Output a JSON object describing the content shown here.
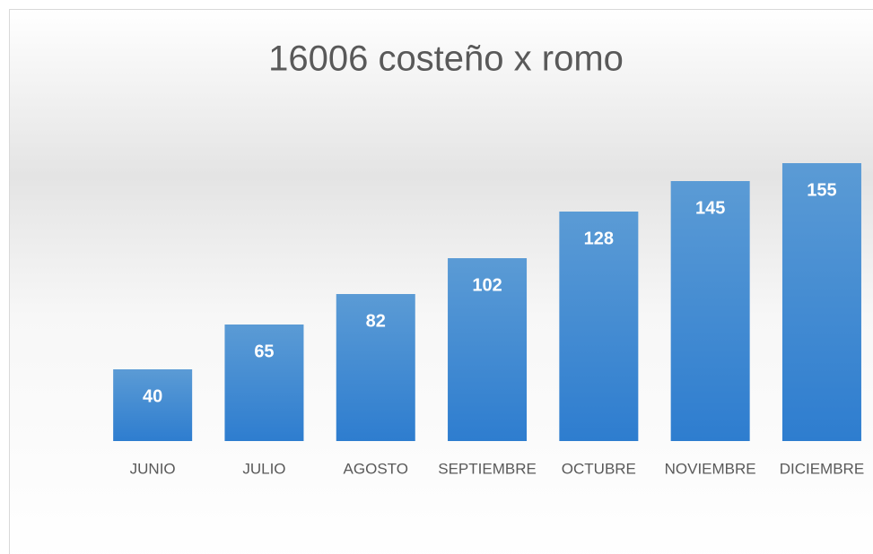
{
  "chart_data": {
    "type": "bar",
    "title": "16006 costeño x romo",
    "categories": [
      "JUNIO",
      "JULIO",
      "AGOSTO",
      "SEPTIEMBRE",
      "OCTUBRE",
      "NOVIEMBRE",
      "DICIEMBRE"
    ],
    "values": [
      40,
      65,
      82,
      102,
      128,
      145,
      155
    ],
    "color": "#4a90d9"
  }
}
